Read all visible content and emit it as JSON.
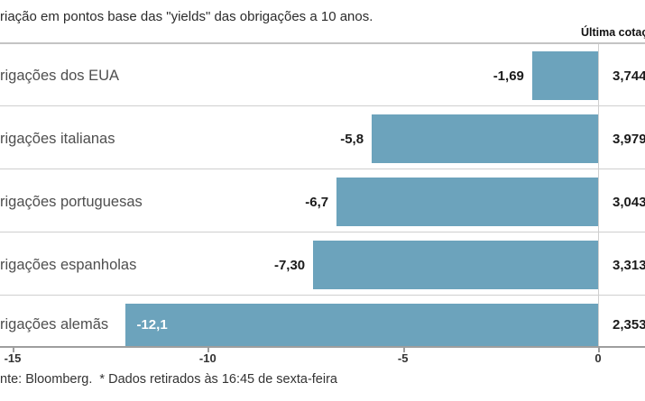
{
  "title": "riação em pontos base das \"yields\" das obrigações a 10 anos.",
  "last_quote_header": "Última cotaç",
  "footer": "nte: Bloomberg.  * Dados retirados às 16:45 de sexta-feira",
  "colors": {
    "bar": "#6CA3BC",
    "separator": "#cfcfcf",
    "axis": "#9e9e9e",
    "row_label": "#4f4f4f",
    "value_label": "#1b1b1b",
    "value_label_inside_bar": "#ffffff",
    "background": "#ffffff"
  },
  "chart_data": {
    "type": "bar",
    "orientation": "horizontal",
    "title": "riação em pontos base das \"yields\" das obrigações a 10 anos.",
    "categories": [
      "rigações dos EUA",
      "rigações italianas",
      "rigações portuguesas",
      "rigações espanholas",
      "rigações alemãs"
    ],
    "values": [
      -1.69,
      -5.8,
      -6.7,
      -7.3,
      -12.1
    ],
    "value_labels": [
      "-1,69",
      "-5,8",
      "-6,7",
      "-7,30",
      "-12,1"
    ],
    "value_label_inside": [
      false,
      false,
      false,
      false,
      true
    ],
    "last_quote_column_header": "Última cotaç",
    "last_quotes": [
      "3,744",
      "3,979",
      "3,043",
      "3,313",
      "2,353"
    ],
    "xlim": [
      -15,
      0
    ],
    "x_ticks": [
      "-15",
      "-10",
      "-5",
      "0"
    ],
    "x_tick_values": [
      -15,
      -10,
      -5,
      0
    ],
    "grid": false,
    "legend": null,
    "bar_color": "#6CA3BC",
    "source_note": "nte: Bloomberg.  * Dados retirados às 16:45 de sexta-feira"
  }
}
